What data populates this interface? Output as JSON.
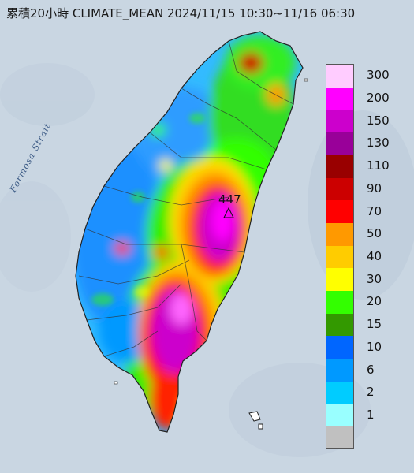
{
  "title": "累積20小時 CLIMATE_MEAN 2024/11/15 10:30~11/16 06:30",
  "strait_label": "Formosa Strait",
  "max_value": "447",
  "legend": [
    {
      "label": "300",
      "color": "#ffccff"
    },
    {
      "label": "200",
      "color": "#ff00ff"
    },
    {
      "label": "150",
      "color": "#cc00cc"
    },
    {
      "label": "130",
      "color": "#990099"
    },
    {
      "label": "110",
      "color": "#990000"
    },
    {
      "label": "90",
      "color": "#cc0000"
    },
    {
      "label": "70",
      "color": "#ff0000"
    },
    {
      "label": "50",
      "color": "#ff9900"
    },
    {
      "label": "40",
      "color": "#ffcc00"
    },
    {
      "label": "30",
      "color": "#ffff00"
    },
    {
      "label": "20",
      "color": "#33ff00"
    },
    {
      "label": "15",
      "color": "#339900"
    },
    {
      "label": "10",
      "color": "#0066ff"
    },
    {
      "label": "6",
      "color": "#0099ff"
    },
    {
      "label": "2",
      "color": "#00ccff"
    },
    {
      "label": "1",
      "color": "#99ffff"
    },
    {
      "label": "",
      "color": "#c0c0c0"
    }
  ],
  "colors": {
    "sea": "#c9d6e2",
    "land_outline": "#333333"
  }
}
